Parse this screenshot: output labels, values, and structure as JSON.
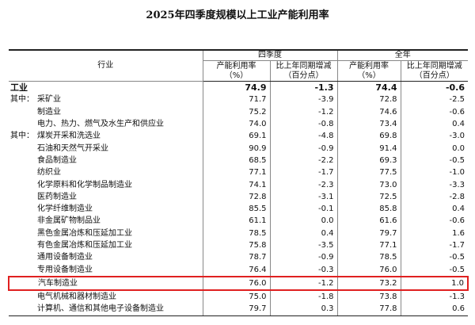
{
  "header": {
    "title": "2025年四季度规模以上工业产能利用率"
  },
  "table": {
    "industry_header": "行业",
    "groups": [
      "四季度",
      "全年"
    ],
    "columns": [
      "产能利用率\n（%）",
      "比上年同期增减\n（百分点）",
      "产能利用率\n（%）",
      "比上年同期增减\n（百分点）"
    ],
    "rows": [
      {
        "name": "工业",
        "values": [
          "74.9",
          "-1.3",
          "74.4",
          "-0.6"
        ]
      },
      {
        "prefix": "其中：",
        "name": "采矿业",
        "values": [
          "71.7",
          "-3.9",
          "72.8",
          "-2.5"
        ]
      },
      {
        "name": "制造业",
        "values": [
          "75.2",
          "-1.2",
          "74.6",
          "-0.6"
        ]
      },
      {
        "name": "电力、热力、燃气及水生产和供应业",
        "values": [
          "74.0",
          "-0.8",
          "73.4",
          "0.4"
        ]
      },
      {
        "prefix": "其中：",
        "name": "煤炭开采和洗选业",
        "values": [
          "69.1",
          "-4.8",
          "69.8",
          "-3.0"
        ]
      },
      {
        "name": "石油和天然气开采业",
        "values": [
          "90.9",
          "-0.9",
          "91.4",
          "0.0"
        ]
      },
      {
        "name": "食品制造业",
        "values": [
          "68.5",
          "-2.2",
          "69.3",
          "-0.5"
        ]
      },
      {
        "name": "纺织业",
        "values": [
          "77.1",
          "-1.7",
          "77.5",
          "-1.0"
        ]
      },
      {
        "name": "化学原料和化学制品制造业",
        "values": [
          "74.1",
          "-2.3",
          "73.0",
          "-3.3"
        ]
      },
      {
        "name": "医药制造业",
        "values": [
          "72.8",
          "-3.1",
          "72.5",
          "-2.8"
        ]
      },
      {
        "name": "化学纤维制造业",
        "values": [
          "85.5",
          "-0.1",
          "85.8",
          "0.4"
        ]
      },
      {
        "name": "非金属矿物制品业",
        "values": [
          "61.1",
          "0.0",
          "61.6",
          "-0.6"
        ]
      },
      {
        "name": "黑色金属冶炼和压延加工业",
        "values": [
          "78.5",
          "0.4",
          "79.7",
          "1.6"
        ]
      },
      {
        "name": "有色金属冶炼和压延加工业",
        "values": [
          "75.8",
          "-3.5",
          "77.1",
          "-1.7"
        ]
      },
      {
        "name": "通用设备制造业",
        "values": [
          "78.7",
          "-0.9",
          "78.5",
          "-0.5"
        ]
      },
      {
        "name": "专用设备制造业",
        "values": [
          "76.4",
          "-0.3",
          "76.0",
          "-0.5"
        ]
      },
      {
        "name": "汽车制造业",
        "values": [
          "76.0",
          "-1.2",
          "73.2",
          "1.0"
        ]
      },
      {
        "name": "电气机械和器材制造业",
        "values": [
          "75.0",
          "-1.8",
          "73.8",
          "-1.3"
        ]
      },
      {
        "name": "计算机、通信和其他电子设备制造业",
        "values": [
          "79.7",
          "0.3",
          "77.8",
          "0.6"
        ]
      }
    ]
  }
}
